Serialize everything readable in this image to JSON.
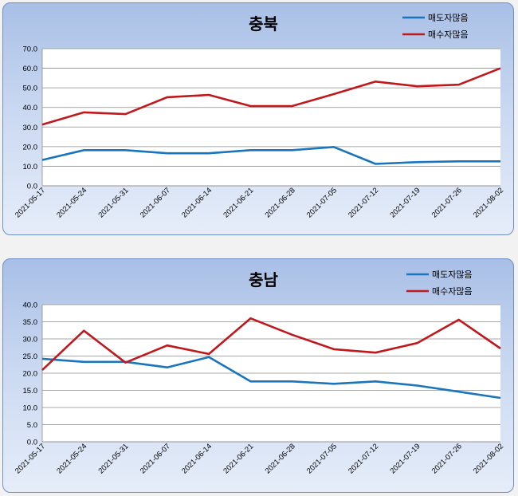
{
  "colors": {
    "sell": "#1a75bc",
    "buy": "#c0191d"
  },
  "chart_data": [
    {
      "type": "line",
      "title": "충북",
      "x": [
        "2021-05-17",
        "2021-05-24",
        "2021-05-31",
        "2021-06-07",
        "2021-06-14",
        "2021-06-21",
        "2021-06-28",
        "2021-07-05",
        "2021-07-12",
        "2021-07-19",
        "2021-07-26",
        "2021-08-02"
      ],
      "yticks": [
        "0.0",
        "10.0",
        "20.0",
        "30.0",
        "40.0",
        "50.0",
        "60.0",
        "70.0"
      ],
      "ylim": [
        0,
        70
      ],
      "legend": "top-right",
      "grid": true,
      "series": [
        {
          "name": "매도자많음",
          "values": [
            13.2,
            18.2,
            18.2,
            16.6,
            16.6,
            18.2,
            18.2,
            19.8,
            11.2,
            12.1,
            12.5,
            12.5
          ]
        },
        {
          "name": "매수자많음",
          "values": [
            31.2,
            37.5,
            36.6,
            45.2,
            46.4,
            40.7,
            40.7,
            46.8,
            53.2,
            50.8,
            51.6,
            60.0
          ]
        }
      ]
    },
    {
      "type": "line",
      "title": "충남",
      "x": [
        "2021-05-17",
        "2021-05-24",
        "2021-05-31",
        "2021-06-07",
        "2021-06-14",
        "2021-06-21",
        "2021-06-28",
        "2021-07-05",
        "2021-07-12",
        "2021-07-19",
        "2021-07-26",
        "2021-08-02"
      ],
      "yticks": [
        "0.0",
        "5.0",
        "10.0",
        "15.0",
        "20.0",
        "25.0",
        "30.0",
        "35.0",
        "40.0"
      ],
      "ylim": [
        0,
        40
      ],
      "legend": "top-right",
      "grid": true,
      "series": [
        {
          "name": "매도자많음",
          "values": [
            24.2,
            23.3,
            23.3,
            21.7,
            24.7,
            17.6,
            17.6,
            16.9,
            17.6,
            16.4,
            14.6,
            12.8
          ]
        },
        {
          "name": "매수자많음",
          "values": [
            20.9,
            32.4,
            23.1,
            28.1,
            25.6,
            36.0,
            31.2,
            27.0,
            26.0,
            28.8,
            35.6,
            27.2
          ]
        }
      ]
    }
  ]
}
